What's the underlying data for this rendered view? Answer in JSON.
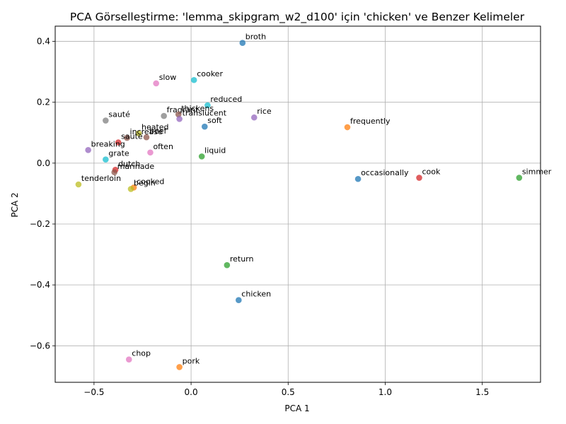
{
  "chart_data": {
    "type": "scatter",
    "title": "PCA Görselleştirme: 'lemma_skipgram_w2_d100' için 'chicken' ve Benzer Kelimeler",
    "xlabel": "PCA 1",
    "ylabel": "PCA 2",
    "xlim": [
      -0.7,
      1.8
    ],
    "ylim": [
      -0.72,
      0.45
    ],
    "xticks": [
      -0.5,
      0.0,
      0.5,
      1.0,
      1.5
    ],
    "xtick_labels": [
      "−0.5",
      "0.0",
      "0.5",
      "1.0",
      "1.5"
    ],
    "yticks": [
      -0.6,
      -0.4,
      -0.2,
      0.0,
      0.2,
      0.4
    ],
    "ytick_labels": [
      "−0.6",
      "−0.4",
      "−0.2",
      "0.0",
      "0.2",
      "0.4"
    ],
    "grid": true,
    "points": [
      {
        "label": "broth",
        "x": 0.265,
        "y": 0.395,
        "color": "#1f77b4"
      },
      {
        "label": "slow",
        "x": -0.18,
        "y": 0.262,
        "color": "#e377c2"
      },
      {
        "label": "cooker",
        "x": 0.015,
        "y": 0.273,
        "color": "#17becf"
      },
      {
        "label": "reduced",
        "x": 0.085,
        "y": 0.19,
        "color": "#17becf"
      },
      {
        "label": "fragrant",
        "x": -0.14,
        "y": 0.155,
        "color": "#7f7f7f"
      },
      {
        "label": "thickens",
        "x": -0.065,
        "y": 0.16,
        "color": "#8c564b"
      },
      {
        "label": "translucent",
        "x": -0.06,
        "y": 0.145,
        "color": "#9467bd"
      },
      {
        "label": "rice",
        "x": 0.325,
        "y": 0.15,
        "color": "#9467bd"
      },
      {
        "label": "sauté",
        "x": -0.44,
        "y": 0.14,
        "color": "#7f7f7f"
      },
      {
        "label": "soft",
        "x": 0.07,
        "y": 0.12,
        "color": "#1f77b4"
      },
      {
        "label": "frequently",
        "x": 0.805,
        "y": 0.118,
        "color": "#ff7f0e"
      },
      {
        "label": "heated",
        "x": -0.27,
        "y": 0.098,
        "color": "#bcbd22"
      },
      {
        "label": "increase",
        "x": -0.33,
        "y": 0.083,
        "color": "#8c564b"
      },
      {
        "label": "beef",
        "x": -0.23,
        "y": 0.085,
        "color": "#8c564b"
      },
      {
        "label": "saute",
        "x": -0.375,
        "y": 0.068,
        "color": "#d62728"
      },
      {
        "label": "breaking",
        "x": -0.53,
        "y": 0.043,
        "color": "#9467bd"
      },
      {
        "label": "often",
        "x": -0.21,
        "y": 0.035,
        "color": "#e377c2"
      },
      {
        "label": "liquid",
        "x": 0.055,
        "y": 0.022,
        "color": "#2ca02c"
      },
      {
        "label": "grate",
        "x": -0.44,
        "y": 0.012,
        "color": "#17becf"
      },
      {
        "label": "dutch",
        "x": -0.39,
        "y": -0.022,
        "color": "#d62728"
      },
      {
        "label": "marinade",
        "x": -0.395,
        "y": -0.03,
        "color": "#8c564b"
      },
      {
        "label": "occasionally",
        "x": 0.86,
        "y": -0.052,
        "color": "#1f77b4"
      },
      {
        "label": "cook",
        "x": 1.175,
        "y": -0.048,
        "color": "#d62728"
      },
      {
        "label": "simmer",
        "x": 1.69,
        "y": -0.048,
        "color": "#2ca02c"
      },
      {
        "label": "tenderloin",
        "x": -0.58,
        "y": -0.07,
        "color": "#bcbd22"
      },
      {
        "label": "cooked",
        "x": -0.295,
        "y": -0.08,
        "color": "#ff7f0e"
      },
      {
        "label": "begin",
        "x": -0.31,
        "y": -0.085,
        "color": "#bcbd22"
      },
      {
        "label": "return",
        "x": 0.185,
        "y": -0.335,
        "color": "#2ca02c"
      },
      {
        "label": "chicken",
        "x": 0.245,
        "y": -0.45,
        "color": "#1f77b4"
      },
      {
        "label": "chop",
        "x": -0.32,
        "y": -0.645,
        "color": "#e377c2"
      },
      {
        "label": "pork",
        "x": -0.06,
        "y": -0.67,
        "color": "#ff7f0e"
      }
    ]
  }
}
